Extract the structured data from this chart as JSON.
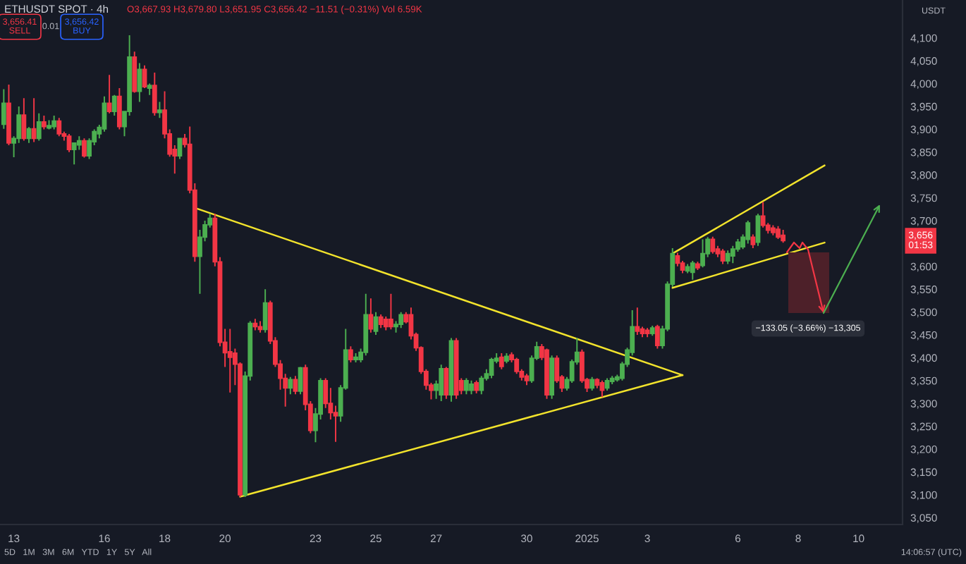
{
  "chart_data": {
    "type": "candlestick",
    "title": "ETHUSDT SPOT · 4h",
    "subtitle": "O3,667.93 H3,679.80 L3,651.95 C3,656.42 −11.51 (−0.31%) Vol 6.59K",
    "ylabel": "USDT",
    "x": [
      "2024-12-12T16:00",
      "2024-12-12T20:00",
      "2024-12-13T00:00",
      "2024-12-13T04:00",
      "2024-12-13T08:00",
      "2024-12-13T12:00",
      "2024-12-13T16:00",
      "2024-12-13T20:00",
      "2024-12-14T00:00",
      "2024-12-14T04:00",
      "2024-12-14T08:00",
      "2024-12-14T12:00",
      "2024-12-14T16:00",
      "2024-12-14T20:00",
      "2024-12-15T00:00",
      "2024-12-15T04:00",
      "2024-12-15T08:00",
      "2024-12-15T12:00",
      "2024-12-15T16:00",
      "2024-12-15T20:00",
      "2024-12-16T00:00",
      "2024-12-16T04:00",
      "2024-12-16T08:00",
      "2024-12-16T12:00",
      "2024-12-16T16:00",
      "2024-12-16T20:00",
      "2024-12-17T00:00",
      "2024-12-17T04:00",
      "2024-12-17T08:00",
      "2024-12-17T12:00",
      "2024-12-17T16:00",
      "2024-12-17T20:00",
      "2024-12-18T00:00",
      "2024-12-18T04:00",
      "2024-12-18T08:00",
      "2024-12-18T12:00",
      "2024-12-18T16:00",
      "2024-12-18T20:00",
      "2024-12-19T00:00",
      "2024-12-19T04:00",
      "2024-12-19T08:00",
      "2024-12-19T12:00",
      "2024-12-19T16:00",
      "2024-12-19T20:00",
      "2024-12-20T00:00",
      "2024-12-20T04:00",
      "2024-12-20T08:00",
      "2024-12-20T12:00",
      "2024-12-20T16:00",
      "2024-12-20T20:00",
      "2024-12-21T00:00",
      "2024-12-21T04:00",
      "2024-12-21T08:00",
      "2024-12-21T12:00",
      "2024-12-21T16:00",
      "2024-12-21T20:00",
      "2024-12-22T00:00",
      "2024-12-22T04:00",
      "2024-12-22T08:00",
      "2024-12-22T12:00",
      "2024-12-22T16:00",
      "2024-12-22T20:00",
      "2024-12-23T00:00",
      "2024-12-23T04:00",
      "2024-12-23T08:00",
      "2024-12-23T12:00",
      "2024-12-23T16:00",
      "2024-12-23T20:00",
      "2024-12-24T00:00",
      "2024-12-24T04:00",
      "2024-12-24T08:00",
      "2024-12-24T12:00",
      "2024-12-24T16:00",
      "2024-12-24T20:00",
      "2024-12-25T00:00",
      "2024-12-25T04:00",
      "2024-12-25T08:00",
      "2024-12-25T12:00",
      "2024-12-25T16:00",
      "2024-12-25T20:00",
      "2024-12-26T00:00",
      "2024-12-26T04:00",
      "2024-12-26T08:00",
      "2024-12-26T12:00",
      "2024-12-26T16:00",
      "2024-12-26T20:00",
      "2024-12-27T00:00",
      "2024-12-27T04:00",
      "2024-12-27T08:00",
      "2024-12-27T12:00",
      "2024-12-27T16:00",
      "2024-12-27T20:00",
      "2024-12-28T00:00",
      "2024-12-28T04:00",
      "2024-12-28T08:00",
      "2024-12-28T12:00",
      "2024-12-28T16:00",
      "2024-12-28T20:00",
      "2024-12-29T00:00",
      "2024-12-29T04:00",
      "2024-12-29T08:00",
      "2024-12-29T12:00",
      "2024-12-29T16:00",
      "2024-12-29T20:00",
      "2024-12-30T00:00",
      "2024-12-30T04:00",
      "2024-12-30T08:00",
      "2024-12-30T12:00",
      "2024-12-30T16:00",
      "2024-12-30T20:00",
      "2024-12-31T00:00",
      "2024-12-31T04:00",
      "2024-12-31T08:00",
      "2024-12-31T12:00",
      "2024-12-31T16:00",
      "2024-12-31T20:00",
      "2025-01-01T00:00",
      "2025-01-01T04:00",
      "2025-01-01T08:00",
      "2025-01-01T12:00",
      "2025-01-01T16:00",
      "2025-01-01T20:00",
      "2025-01-02T00:00",
      "2025-01-02T04:00",
      "2025-01-02T08:00",
      "2025-01-02T12:00",
      "2025-01-02T16:00",
      "2025-01-02T20:00",
      "2025-01-03T00:00",
      "2025-01-03T04:00",
      "2025-01-03T08:00",
      "2025-01-03T12:00",
      "2025-01-03T16:00",
      "2025-01-03T20:00",
      "2025-01-04T00:00",
      "2025-01-04T04:00",
      "2025-01-04T08:00",
      "2025-01-04T12:00",
      "2025-01-04T16:00",
      "2025-01-04T20:00",
      "2025-01-05T00:00",
      "2025-01-05T04:00",
      "2025-01-05T08:00",
      "2025-01-05T12:00",
      "2025-01-05T16:00",
      "2025-01-05T20:00",
      "2025-01-06T00:00",
      "2025-01-06T04:00",
      "2025-01-06T08:00",
      "2025-01-06T12:00",
      "2025-01-06T16:00",
      "2025-01-06T20:00",
      "2025-01-07T00:00",
      "2025-01-07T04:00",
      "2025-01-07T08:00",
      "2025-01-07T12:00"
    ],
    "ohlc": [
      [
        3911,
        3988,
        3901,
        3957
      ],
      [
        3957,
        3998,
        3865,
        3870
      ],
      [
        3870,
        3885,
        3839,
        3880
      ],
      [
        3880,
        3950,
        3870,
        3931
      ],
      [
        3931,
        3968,
        3875,
        3880
      ],
      [
        3880,
        3905,
        3870,
        3901
      ],
      [
        3901,
        3968,
        3872,
        3880
      ],
      [
        3880,
        3935,
        3875,
        3916
      ],
      [
        3916,
        3930,
        3900,
        3906
      ],
      [
        3903,
        3920,
        3900,
        3908
      ],
      [
        3906,
        3930,
        3900,
        3918
      ],
      [
        3918,
        3925,
        3885,
        3890
      ],
      [
        3890,
        3895,
        3875,
        3885
      ],
      [
        3885,
        3890,
        3850,
        3856
      ],
      [
        3856,
        3870,
        3823,
        3870
      ],
      [
        3866,
        3885,
        3855,
        3875
      ],
      [
        3875,
        3880,
        3838,
        3842
      ],
      [
        3842,
        3880,
        3835,
        3875
      ],
      [
        3873,
        3900,
        3865,
        3895
      ],
      [
        3890,
        3910,
        3880,
        3904
      ],
      [
        3901,
        3972,
        3895,
        3957
      ],
      [
        3957,
        4019,
        3935,
        3939
      ],
      [
        3939,
        3975,
        3930,
        3972
      ],
      [
        3972,
        3990,
        3900,
        3906
      ],
      [
        3906,
        3940,
        3885,
        3939
      ],
      [
        3939,
        4106,
        3930,
        4058
      ],
      [
        4058,
        4070,
        3980,
        3983
      ],
      [
        3983,
        4045,
        3960,
        4031
      ],
      [
        4031,
        4040,
        3990,
        3993
      ],
      [
        3990,
        4000,
        3975,
        3996
      ],
      [
        3996,
        4024,
        3930,
        3937
      ],
      [
        3937,
        3960,
        3925,
        3942
      ],
      [
        3942,
        3983,
        3880,
        3890
      ],
      [
        3890,
        3900,
        3840,
        3846
      ],
      [
        3856,
        3865,
        3803,
        3842
      ],
      [
        3842,
        3880,
        3835,
        3880
      ],
      [
        3880,
        3890,
        3860,
        3867
      ],
      [
        3867,
        3906,
        3760,
        3767
      ],
      [
        3767,
        3782,
        3610,
        3622
      ],
      [
        3622,
        3680,
        3540,
        3664
      ],
      [
        3664,
        3700,
        3655,
        3691
      ],
      [
        3691,
        3715,
        3685,
        3705
      ],
      [
        3705,
        3715,
        3600,
        3610
      ],
      [
        3610,
        3620,
        3425,
        3434
      ],
      [
        3434,
        3463,
        3380,
        3411
      ],
      [
        3413,
        3463,
        3324,
        3401
      ],
      [
        3410,
        3420,
        3340,
        3386
      ],
      [
        3386,
        3390,
        3095,
        3100
      ],
      [
        3100,
        3370,
        3095,
        3360
      ],
      [
        3360,
        3480,
        3350,
        3475
      ],
      [
        3475,
        3485,
        3460,
        3468
      ],
      [
        3468,
        3480,
        3455,
        3462
      ],
      [
        3462,
        3550,
        3455,
        3520
      ],
      [
        3520,
        3525,
        3430,
        3437
      ],
      [
        3437,
        3445,
        3380,
        3386
      ],
      [
        3386,
        3395,
        3330,
        3355
      ],
      [
        3355,
        3365,
        3293,
        3334
      ],
      [
        3334,
        3358,
        3320,
        3352
      ],
      [
        3352,
        3360,
        3320,
        3327
      ],
      [
        3327,
        3380,
        3320,
        3378
      ],
      [
        3378,
        3385,
        3285,
        3298
      ],
      [
        3298,
        3305,
        3235,
        3241
      ],
      [
        3241,
        3290,
        3215,
        3277
      ],
      [
        3277,
        3355,
        3265,
        3350
      ],
      [
        3350,
        3355,
        3290,
        3300
      ],
      [
        3300,
        3334,
        3265,
        3280
      ],
      [
        3280,
        3295,
        3216,
        3273
      ],
      [
        3273,
        3340,
        3260,
        3334
      ],
      [
        3334,
        3463,
        3330,
        3417
      ],
      [
        3417,
        3425,
        3390,
        3396
      ],
      [
        3396,
        3410,
        3390,
        3401
      ],
      [
        3396,
        3420,
        3390,
        3412
      ],
      [
        3412,
        3540,
        3405,
        3494
      ],
      [
        3494,
        3530,
        3455,
        3463
      ],
      [
        3458,
        3500,
        3450,
        3489
      ],
      [
        3489,
        3495,
        3465,
        3473
      ],
      [
        3484,
        3490,
        3460,
        3468
      ],
      [
        3484,
        3540,
        3462,
        3468
      ],
      [
        3468,
        3480,
        3455,
        3473
      ],
      [
        3473,
        3500,
        3465,
        3494
      ],
      [
        3494,
        3500,
        3475,
        3479
      ],
      [
        3494,
        3510,
        3440,
        3448
      ],
      [
        3451,
        3455,
        3415,
        3422
      ],
      [
        3422,
        3425,
        3365,
        3370
      ],
      [
        3370,
        3375,
        3330,
        3340
      ],
      [
        3340,
        3345,
        3309,
        3329
      ],
      [
        3329,
        3350,
        3310,
        3342
      ],
      [
        3319,
        3385,
        3305,
        3376
      ],
      [
        3376,
        3380,
        3310,
        3319
      ],
      [
        3319,
        3443,
        3304,
        3437
      ],
      [
        3437,
        3443,
        3310,
        3319
      ],
      [
        3350,
        3355,
        3320,
        3329
      ],
      [
        3329,
        3355,
        3320,
        3350
      ],
      [
        3329,
        3350,
        3320,
        3342
      ],
      [
        3345,
        3350,
        3322,
        3329
      ],
      [
        3329,
        3360,
        3320,
        3355
      ],
      [
        3355,
        3375,
        3350,
        3365
      ],
      [
        3362,
        3400,
        3355,
        3396
      ],
      [
        3393,
        3410,
        3388,
        3399
      ],
      [
        3401,
        3410,
        3375,
        3381
      ],
      [
        3393,
        3410,
        3388,
        3403
      ],
      [
        3406,
        3412,
        3390,
        3396
      ],
      [
        3396,
        3400,
        3365,
        3370
      ],
      [
        3370,
        3375,
        3350,
        3358
      ],
      [
        3360,
        3365,
        3340,
        3350
      ],
      [
        3350,
        3405,
        3345,
        3399
      ],
      [
        3399,
        3435,
        3395,
        3424
      ],
      [
        3424,
        3430,
        3395,
        3401
      ],
      [
        3417,
        3420,
        3310,
        3319
      ],
      [
        3319,
        3405,
        3310,
        3399
      ],
      [
        3399,
        3405,
        3345,
        3350
      ],
      [
        3358,
        3362,
        3325,
        3334
      ],
      [
        3334,
        3358,
        3328,
        3352
      ],
      [
        3350,
        3396,
        3345,
        3391
      ],
      [
        3391,
        3443,
        3385,
        3412
      ],
      [
        3412,
        3418,
        3345,
        3350
      ],
      [
        3352,
        3356,
        3325,
        3334
      ],
      [
        3334,
        3358,
        3328,
        3352
      ],
      [
        3352,
        3355,
        3333,
        3340
      ],
      [
        3345,
        3350,
        3314,
        3329
      ],
      [
        3334,
        3355,
        3328,
        3350
      ],
      [
        3348,
        3360,
        3342,
        3355
      ],
      [
        3352,
        3363,
        3348,
        3358
      ],
      [
        3355,
        3391,
        3350,
        3386
      ],
      [
        3386,
        3422,
        3380,
        3417
      ],
      [
        3412,
        3504,
        3405,
        3468
      ],
      [
        3468,
        3510,
        3450,
        3458
      ],
      [
        3463,
        3468,
        3445,
        3453
      ],
      [
        3460,
        3465,
        3445,
        3453
      ],
      [
        3453,
        3470,
        3448,
        3465
      ],
      [
        3468,
        3472,
        3420,
        3427
      ],
      [
        3427,
        3470,
        3420,
        3463
      ],
      [
        3463,
        3567,
        3458,
        3561
      ],
      [
        3561,
        3640,
        3555,
        3628
      ],
      [
        3623,
        3630,
        3600,
        3607
      ],
      [
        3607,
        3612,
        3585,
        3592
      ],
      [
        3590,
        3605,
        3585,
        3599
      ],
      [
        3587,
        3612,
        3571,
        3607
      ],
      [
        3605,
        3610,
        3592,
        3597
      ],
      [
        3602,
        3659,
        3598,
        3628
      ],
      [
        3628,
        3664,
        3620,
        3659
      ],
      [
        3659,
        3665,
        3628,
        3633
      ],
      [
        3638,
        3645,
        3620,
        3628
      ],
      [
        3633,
        3638,
        3605,
        3612
      ],
      [
        3612,
        3635,
        3605,
        3628
      ],
      [
        3623,
        3645,
        3607,
        3638
      ],
      [
        3638,
        3660,
        3632,
        3653
      ],
      [
        3643,
        3670,
        3638,
        3664
      ],
      [
        3659,
        3700,
        3650,
        3695
      ],
      [
        3664,
        3670,
        3640,
        3648
      ],
      [
        3653,
        3715,
        3645,
        3710
      ],
      [
        3710,
        3741,
        3685,
        3690
      ],
      [
        3690,
        3695,
        3672,
        3679
      ],
      [
        3684,
        3690,
        3668,
        3674
      ],
      [
        3681,
        3688,
        3660,
        3664
      ],
      [
        3667.93,
        3679.8,
        3651.95,
        3656.42
      ]
    ],
    "colors": [
      "#4caf50",
      "#f23645",
      "#4caf50",
      "#4caf50",
      "#f23645",
      "#4caf50",
      "#f23645",
      "#4caf50",
      "#f23645",
      "#4caf50",
      "#4caf50",
      "#f23645",
      "#f23645",
      "#f23645",
      "#4caf50",
      "#4caf50",
      "#f23645",
      "#4caf50",
      "#4caf50",
      "#4caf50",
      "#4caf50",
      "#f23645",
      "#4caf50",
      "#f23645",
      "#4caf50",
      "#4caf50",
      "#f23645",
      "#4caf50",
      "#f23645",
      "#4caf50",
      "#f23645",
      "#4caf50",
      "#f23645",
      "#f23645",
      "#f23645",
      "#4caf50",
      "#f23645",
      "#f23645",
      "#f23645",
      "#4caf50",
      "#4caf50",
      "#4caf50",
      "#f23645",
      "#f23645",
      "#f23645",
      "#f23645",
      "#f23645",
      "#f23645",
      "#4caf50",
      "#4caf50",
      "#f23645",
      "#f23645",
      "#4caf50",
      "#f23645",
      "#f23645",
      "#f23645",
      "#f23645",
      "#4caf50",
      "#f23645",
      "#4caf50",
      "#f23645",
      "#f23645",
      "#4caf50",
      "#4caf50",
      "#f23645",
      "#f23645",
      "#f23645",
      "#4caf50",
      "#4caf50",
      "#f23645",
      "#4caf50",
      "#4caf50",
      "#4caf50",
      "#f23645",
      "#4caf50",
      "#f23645",
      "#f23645",
      "#f23645",
      "#4caf50",
      "#4caf50",
      "#f23645",
      "#f23645",
      "#f23645",
      "#f23645",
      "#f23645",
      "#f23645",
      "#4caf50",
      "#4caf50",
      "#f23645",
      "#4caf50",
      "#f23645",
      "#f23645",
      "#4caf50",
      "#4caf50",
      "#f23645",
      "#4caf50",
      "#4caf50",
      "#4caf50",
      "#4caf50",
      "#f23645",
      "#4caf50",
      "#f23645",
      "#f23645",
      "#f23645",
      "#f23645",
      "#4caf50",
      "#4caf50",
      "#f23645",
      "#f23645",
      "#4caf50",
      "#f23645",
      "#f23645",
      "#4caf50",
      "#4caf50",
      "#4caf50",
      "#f23645",
      "#f23645",
      "#4caf50",
      "#f23645",
      "#f23645",
      "#4caf50",
      "#4caf50",
      "#4caf50",
      "#4caf50",
      "#4caf50",
      "#4caf50",
      "#f23645",
      "#f23645",
      "#f23645",
      "#4caf50",
      "#f23645",
      "#4caf50",
      "#4caf50",
      "#4caf50",
      "#f23645",
      "#f23645",
      "#4caf50",
      "#4caf50",
      "#f23645",
      "#4caf50",
      "#4caf50",
      "#f23645",
      "#f23645",
      "#f23645",
      "#4caf50",
      "#4caf50",
      "#4caf50",
      "#4caf50",
      "#4caf50",
      "#f23645",
      "#4caf50",
      "#f23645",
      "#f23645",
      "#f23645",
      "#f23645",
      "#f23645"
    ],
    "series": [
      {
        "type": "line",
        "x": [
          "2024-12-19T00:00",
          "2025-01-04T04:00"
        ],
        "values": [
          3728,
          3362
        ],
        "color": "#f2e32c"
      },
      {
        "type": "line",
        "x": [
          "2024-12-20T12:00",
          "2025-01-04T04:00"
        ],
        "values": [
          3096,
          3362
        ],
        "color": "#f2e32c"
      },
      {
        "type": "line",
        "x": [
          "2025-01-03T20:00",
          "2025-01-08T21:00"
        ],
        "values": [
          3628,
          3821
        ],
        "color": "#f2e32c"
      },
      {
        "type": "line",
        "x": [
          "2025-01-03T20:00",
          "2025-01-08T21:00"
        ],
        "values": [
          3553,
          3652
        ],
        "color": "#f2e32c"
      }
    ],
    "xlim": [
      "2024-12-12T13:00",
      "2025-01-11T11:00"
    ],
    "ylim": [
      3035,
      4183
    ],
    "xticks": [
      {
        "value": "2024-12-13",
        "label": "13"
      },
      {
        "value": "2024-12-16",
        "label": "16"
      },
      {
        "value": "2024-12-18",
        "label": "18"
      },
      {
        "value": "2024-12-20",
        "label": "20"
      },
      {
        "value": "2024-12-23",
        "label": "23"
      },
      {
        "value": "2024-12-25",
        "label": "25"
      },
      {
        "value": "2024-12-27",
        "label": "27"
      },
      {
        "value": "2024-12-30",
        "label": "30"
      },
      {
        "value": "2025-01-01",
        "label": "2025"
      },
      {
        "value": "2025-01-03",
        "label": "3"
      },
      {
        "value": "2025-01-06",
        "label": "6"
      },
      {
        "value": "2025-01-08",
        "label": "8"
      },
      {
        "value": "2025-01-10",
        "label": "10"
      }
    ],
    "yticks": [
      {
        "value": 3050,
        "label": "3,050"
      },
      {
        "value": 3100,
        "label": "3,100"
      },
      {
        "value": 3150,
        "label": "3,150"
      },
      {
        "value": 3200,
        "label": "3,200"
      },
      {
        "value": 3250,
        "label": "3,250"
      },
      {
        "value": 3300,
        "label": "3,300"
      },
      {
        "value": 3350,
        "label": "3,350"
      },
      {
        "value": 3400,
        "label": "3,400"
      },
      {
        "value": 3450,
        "label": "3,450"
      },
      {
        "value": 3500,
        "label": "3,500"
      },
      {
        "value": 3550,
        "label": "3,550"
      },
      {
        "value": 3600,
        "label": "3,600"
      },
      {
        "value": 3700,
        "label": "3,700"
      },
      {
        "value": 3750,
        "label": "3,750"
      },
      {
        "value": 3800,
        "label": "3,800"
      },
      {
        "value": 3850,
        "label": "3,850"
      },
      {
        "value": 3900,
        "label": "3,900"
      },
      {
        "value": 3950,
        "label": "3,950"
      },
      {
        "value": 4000,
        "label": "4,000"
      },
      {
        "value": 4050,
        "label": "4,050"
      },
      {
        "value": 4100,
        "label": "4,100"
      }
    ],
    "annotations": [
      "3,656.41\nSELL",
      "0.01",
      "3,656.42\nBUY",
      "5D   1M   3M   6M   YTD   1Y   5Y   All",
      "14:06:57 (UTC)",
      "−133.05 (−3.66%) −13,305",
      {
        "text": "3,656\n01:53",
        "y": 3656
      }
    ]
  }
}
